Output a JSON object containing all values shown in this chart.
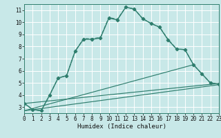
{
  "xlabel": "Humidex (Indice chaleur)",
  "bg_color": "#c8e8e8",
  "grid_color": "#ffffff",
  "line_color": "#2e7d6d",
  "xlim": [
    0,
    23
  ],
  "ylim": [
    2.5,
    11.5
  ],
  "xticks": [
    0,
    1,
    2,
    3,
    4,
    5,
    6,
    7,
    8,
    9,
    10,
    11,
    12,
    13,
    14,
    15,
    16,
    17,
    18,
    19,
    20,
    21,
    22,
    23
  ],
  "yticks": [
    3,
    4,
    5,
    6,
    7,
    8,
    9,
    10,
    11
  ],
  "curve_main_x": [
    0,
    1,
    2,
    3,
    4,
    5,
    6,
    7,
    8,
    9,
    10,
    11,
    12,
    13,
    14,
    15,
    16,
    17,
    18,
    19,
    20,
    21,
    22,
    23
  ],
  "curve_main_y": [
    3.3,
    2.8,
    2.7,
    4.0,
    5.4,
    5.6,
    7.6,
    8.6,
    8.6,
    8.7,
    10.35,
    10.2,
    11.25,
    11.1,
    10.3,
    9.9,
    9.6,
    8.55,
    7.8,
    7.75,
    6.5,
    5.75,
    5.0,
    4.9
  ],
  "curve_dot_x": [
    0,
    1,
    2,
    3,
    4,
    5,
    6,
    7,
    8,
    9,
    10,
    11,
    12,
    13,
    14,
    15,
    16,
    17,
    18,
    19,
    20,
    21,
    22,
    23
  ],
  "curve_dot_y": [
    3.3,
    2.8,
    2.7,
    4.0,
    5.4,
    5.6,
    7.6,
    8.65,
    8.65,
    8.75,
    10.4,
    10.25,
    11.25,
    11.1,
    10.3,
    9.9,
    9.6,
    8.6,
    7.8,
    7.75,
    6.5,
    5.75,
    5.0,
    4.9
  ],
  "line1_x": [
    0,
    23
  ],
  "line1_y": [
    3.3,
    4.95
  ],
  "line2_x": [
    0,
    23
  ],
  "line2_y": [
    2.7,
    4.85
  ],
  "line3_x": [
    0,
    20
  ],
  "line3_y": [
    2.7,
    6.5
  ]
}
